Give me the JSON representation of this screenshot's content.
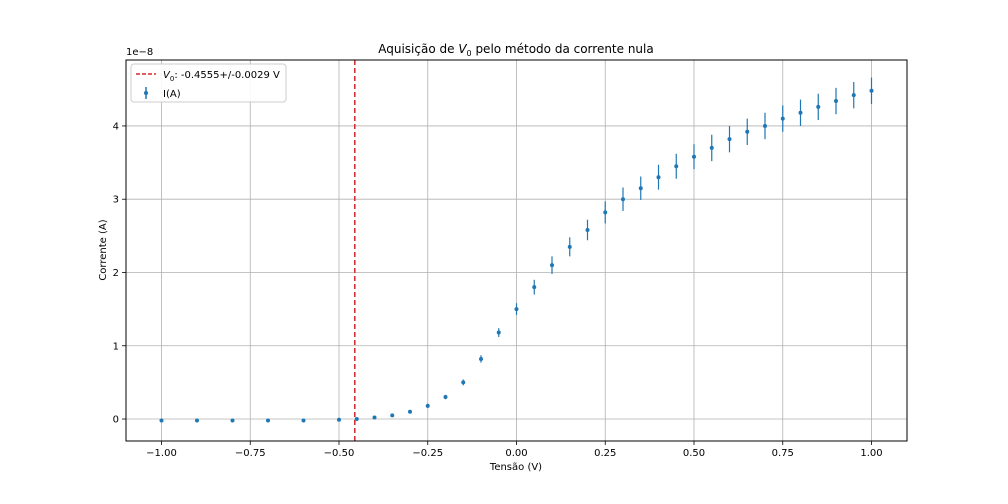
{
  "chart_data": {
    "type": "scatter",
    "title_prefix": "Aquisição de ",
    "title_var": "V",
    "title_sub": "0",
    "title_suffix": " pelo método da corrente nula",
    "xlabel": "Tensão (V)",
    "ylabel": "Corrente (A)",
    "y_offset_text": "1e−8",
    "xlim": [
      -1.1,
      1.1
    ],
    "ylim": [
      -0.3,
      4.9
    ],
    "x_ticks": [
      -1.0,
      -0.75,
      -0.5,
      -0.25,
      0.0,
      0.25,
      0.5,
      0.75,
      1.0
    ],
    "x_tick_labels": [
      "−1.00",
      "−0.75",
      "−0.50",
      "−0.25",
      "0.00",
      "0.25",
      "0.50",
      "0.75",
      "1.00"
    ],
    "y_ticks": [
      0,
      1,
      2,
      3,
      4
    ],
    "y_tick_labels": [
      "0",
      "1",
      "2",
      "3",
      "4"
    ],
    "grid": true,
    "legend_placement": "upper-left",
    "series": [
      {
        "name": "I(A)",
        "color": "#1f77b4",
        "x": [
          -1.0,
          -0.9,
          -0.8,
          -0.7,
          -0.6,
          -0.5,
          -0.45,
          -0.4,
          -0.35,
          -0.3,
          -0.25,
          -0.2,
          -0.15,
          -0.1,
          -0.05,
          0.0,
          0.05,
          0.1,
          0.15,
          0.2,
          0.25,
          0.3,
          0.35,
          0.4,
          0.45,
          0.5,
          0.55,
          0.6,
          0.65,
          0.7,
          0.75,
          0.8,
          0.85,
          0.9,
          0.95,
          1.0
        ],
        "y": [
          -0.02,
          -0.02,
          -0.02,
          -0.02,
          -0.02,
          -0.01,
          0.0,
          0.02,
          0.05,
          0.1,
          0.18,
          0.3,
          0.5,
          0.82,
          1.18,
          1.5,
          1.8,
          2.1,
          2.35,
          2.58,
          2.82,
          3.0,
          3.15,
          3.3,
          3.45,
          3.58,
          3.7,
          3.82,
          3.92,
          4.0,
          4.1,
          4.18,
          4.26,
          4.34,
          4.42,
          4.48
        ],
        "err": [
          0.02,
          0.02,
          0.02,
          0.02,
          0.02,
          0.02,
          0.02,
          0.02,
          0.02,
          0.02,
          0.03,
          0.03,
          0.04,
          0.05,
          0.06,
          0.08,
          0.1,
          0.12,
          0.13,
          0.14,
          0.15,
          0.16,
          0.16,
          0.17,
          0.17,
          0.17,
          0.18,
          0.18,
          0.18,
          0.18,
          0.18,
          0.18,
          0.18,
          0.18,
          0.18,
          0.18
        ]
      }
    ],
    "vline": {
      "x": -0.4555,
      "color": "#d62728",
      "style": "dashed",
      "label_var": "V",
      "label_sub": "0",
      "label_suffix": ": -0.4555+/-0.0029 V"
    }
  }
}
